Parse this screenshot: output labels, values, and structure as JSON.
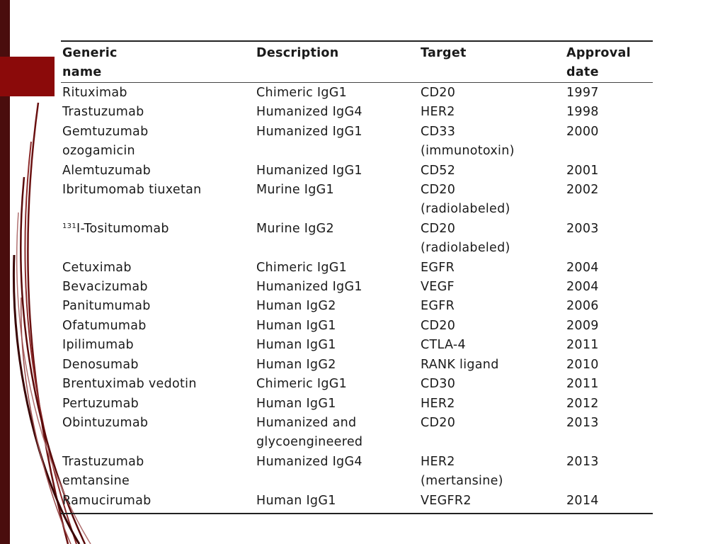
{
  "table": {
    "headers": [
      "Generic\nname",
      "Description",
      "Target",
      "Approval\ndate"
    ],
    "rows": [
      {
        "sup": "",
        "name": "Rituximab",
        "description": "Chimeric IgG1",
        "target": "CD20",
        "date": "1997"
      },
      {
        "sup": "",
        "name": "Trastuzumab",
        "description": "Humanized IgG4",
        "target": "HER2",
        "date": "1998"
      },
      {
        "sup": "",
        "name": "Gemtuzumab\nozogamicin",
        "description": "Humanized IgG1",
        "target": "CD33\n(immunotoxin)",
        "date": "2000"
      },
      {
        "sup": "",
        "name": "Alemtuzumab",
        "description": "Humanized IgG1",
        "target": "CD52",
        "date": "2001"
      },
      {
        "sup": "",
        "name": "Ibritumomab tiuxetan",
        "description": "Murine IgG1",
        "target": "CD20\n(radiolabeled)",
        "date": "2002"
      },
      {
        "sup": "131",
        "name": "I-Tositumomab",
        "description": "Murine IgG2",
        "target": "CD20\n(radiolabeled)",
        "date": "2003"
      },
      {
        "sup": "",
        "name": "Cetuximab",
        "description": "Chimeric IgG1",
        "target": "EGFR",
        "date": "2004"
      },
      {
        "sup": "",
        "name": "Bevacizumab",
        "description": "Humanized IgG1",
        "target": "VEGF",
        "date": "2004"
      },
      {
        "sup": "",
        "name": "Panitumumab",
        "description": "Human IgG2",
        "target": "EGFR",
        "date": "2006"
      },
      {
        "sup": "",
        "name": "Ofatumumab",
        "description": "Human IgG1",
        "target": "CD20",
        "date": "2009"
      },
      {
        "sup": "",
        "name": "Ipilimumab",
        "description": "Human IgG1",
        "target": "CTLA-4",
        "date": "2011"
      },
      {
        "sup": "",
        "name": "Denosumab",
        "description": "Human IgG2",
        "target": "RANK ligand",
        "date": "2010"
      },
      {
        "sup": "",
        "name": "Brentuximab vedotin",
        "description": "Chimeric IgG1",
        "target": "CD30",
        "date": "2011"
      },
      {
        "sup": "",
        "name": "Pertuzumab",
        "description": "Human IgG1",
        "target": "HER2",
        "date": "2012"
      },
      {
        "sup": "",
        "name": "Obintuzumab",
        "description": "Humanized and\nglycoengineered",
        "target": "CD20",
        "date": "2013"
      },
      {
        "sup": "",
        "name": "Trastuzumab\nemtansine",
        "description": "Humanized IgG4",
        "target": "HER2\n(mertansine)",
        "date": "2013"
      },
      {
        "sup": "",
        "name": "Ramucirumab",
        "description": "Human IgG1",
        "target": "VEGFR2",
        "date": "2014"
      }
    ]
  },
  "colors": {
    "left_bar": "#4a0d0d",
    "accent_block": "#8b0a0a"
  }
}
